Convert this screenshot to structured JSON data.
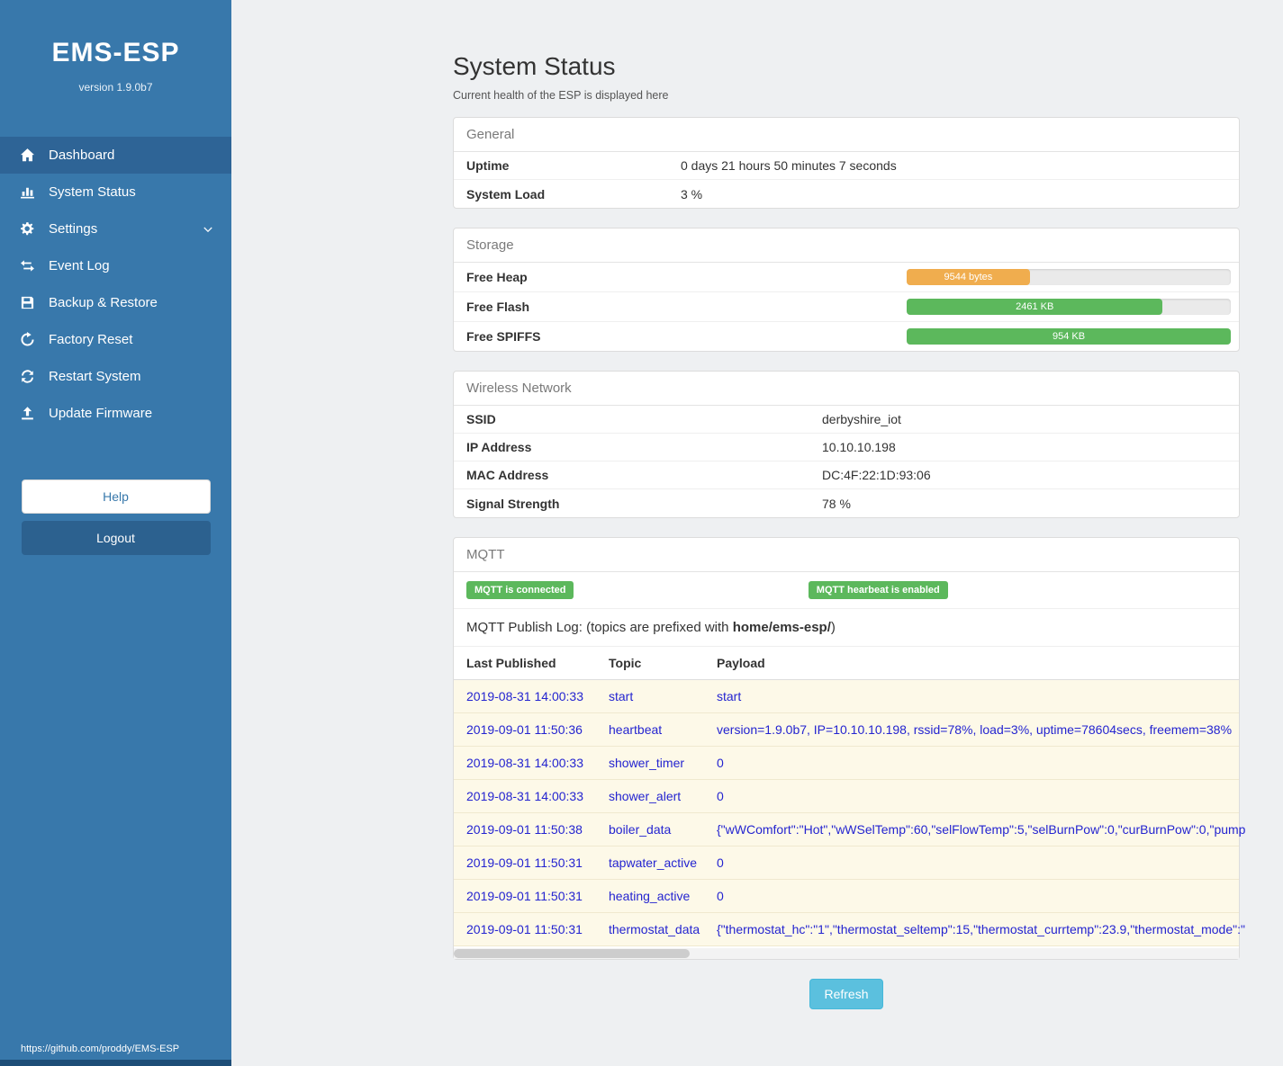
{
  "colors": {
    "sidebar_bg": "#3878ab",
    "sidebar_active": "#2e6496",
    "link": "#2424d0",
    "badge_green": "#5cb85c",
    "bar_orange": "#f0ad4e",
    "bar_green": "#5cb85c",
    "refresh_blue": "#5bc0de"
  },
  "sidebar": {
    "app_title": "EMS-ESP",
    "version": "version 1.9.0b7",
    "items": [
      {
        "id": "dashboard",
        "label": "Dashboard",
        "icon": "home-icon",
        "active": true
      },
      {
        "id": "system-status",
        "label": "System Status",
        "icon": "chart-icon"
      },
      {
        "id": "settings",
        "label": "Settings",
        "icon": "gear-icon",
        "chevron": true
      },
      {
        "id": "event-log",
        "label": "Event Log",
        "icon": "exchange-icon"
      },
      {
        "id": "backup-restore",
        "label": "Backup & Restore",
        "icon": "save-icon"
      },
      {
        "id": "factory-reset",
        "label": "Factory Reset",
        "icon": "undo-icon"
      },
      {
        "id": "restart-system",
        "label": "Restart System",
        "icon": "refresh-icon"
      },
      {
        "id": "update-firmware",
        "label": "Update Firmware",
        "icon": "upload-icon"
      }
    ],
    "help_label": "Help",
    "logout_label": "Logout",
    "footer_link": "https://github.com/proddy/EMS-ESP"
  },
  "page": {
    "title": "System Status",
    "subtitle": "Current health of the ESP is displayed here"
  },
  "general": {
    "title": "General",
    "rows": [
      {
        "label": "Uptime",
        "value": "0 days 21 hours 50 minutes 7 seconds"
      },
      {
        "label": "System Load",
        "value": "3 %"
      }
    ]
  },
  "storage": {
    "title": "Storage",
    "rows": [
      {
        "label": "Free Heap",
        "value": "9544 bytes",
        "percent": 38,
        "color": "#f0ad4e"
      },
      {
        "label": "Free Flash",
        "value": "2461 KB",
        "percent": 79,
        "color": "#5cb85c"
      },
      {
        "label": "Free SPIFFS",
        "value": "954 KB",
        "percent": 100,
        "color": "#5cb85c"
      }
    ]
  },
  "wireless": {
    "title": "Wireless Network",
    "rows": [
      {
        "label": "SSID",
        "value": "derbyshire_iot"
      },
      {
        "label": "IP Address",
        "value": "10.10.10.198"
      },
      {
        "label": "MAC Address",
        "value": "DC:4F:22:1D:93:06"
      },
      {
        "label": "Signal Strength",
        "value": "78 %"
      }
    ]
  },
  "mqtt": {
    "title": "MQTT",
    "badges": [
      "MQTT is connected",
      "MQTT hearbeat is enabled"
    ],
    "log_title_prefix": "MQTT Publish Log: (topics are prefixed with ",
    "topic_prefix": "home/ems-esp/",
    "log_title_suffix": ")",
    "table": {
      "headers": [
        "Last Published",
        "Topic",
        "Payload"
      ],
      "rows": [
        {
          "time": "2019-08-31 14:00:33",
          "topic": "start",
          "payload": "start"
        },
        {
          "time": "2019-09-01 11:50:36",
          "topic": "heartbeat",
          "payload": "version=1.9.0b7, IP=10.10.10.198, rssid=78%, load=3%, uptime=78604secs, freemem=38%"
        },
        {
          "time": "2019-08-31 14:00:33",
          "topic": "shower_timer",
          "payload": "0"
        },
        {
          "time": "2019-08-31 14:00:33",
          "topic": "shower_alert",
          "payload": "0"
        },
        {
          "time": "2019-09-01 11:50:38",
          "topic": "boiler_data",
          "payload": "{\"wWComfort\":\"Hot\",\"wWSelTemp\":60,\"selFlowTemp\":5,\"selBurnPow\":0,\"curBurnPow\":0,\"pump"
        },
        {
          "time": "2019-09-01 11:50:31",
          "topic": "tapwater_active",
          "payload": "0"
        },
        {
          "time": "2019-09-01 11:50:31",
          "topic": "heating_active",
          "payload": "0"
        },
        {
          "time": "2019-09-01 11:50:31",
          "topic": "thermostat_data",
          "payload": "{\"thermostat_hc\":\"1\",\"thermostat_seltemp\":15,\"thermostat_currtemp\":23.9,\"thermostat_mode\":\""
        }
      ]
    }
  },
  "refresh_label": "Refresh"
}
